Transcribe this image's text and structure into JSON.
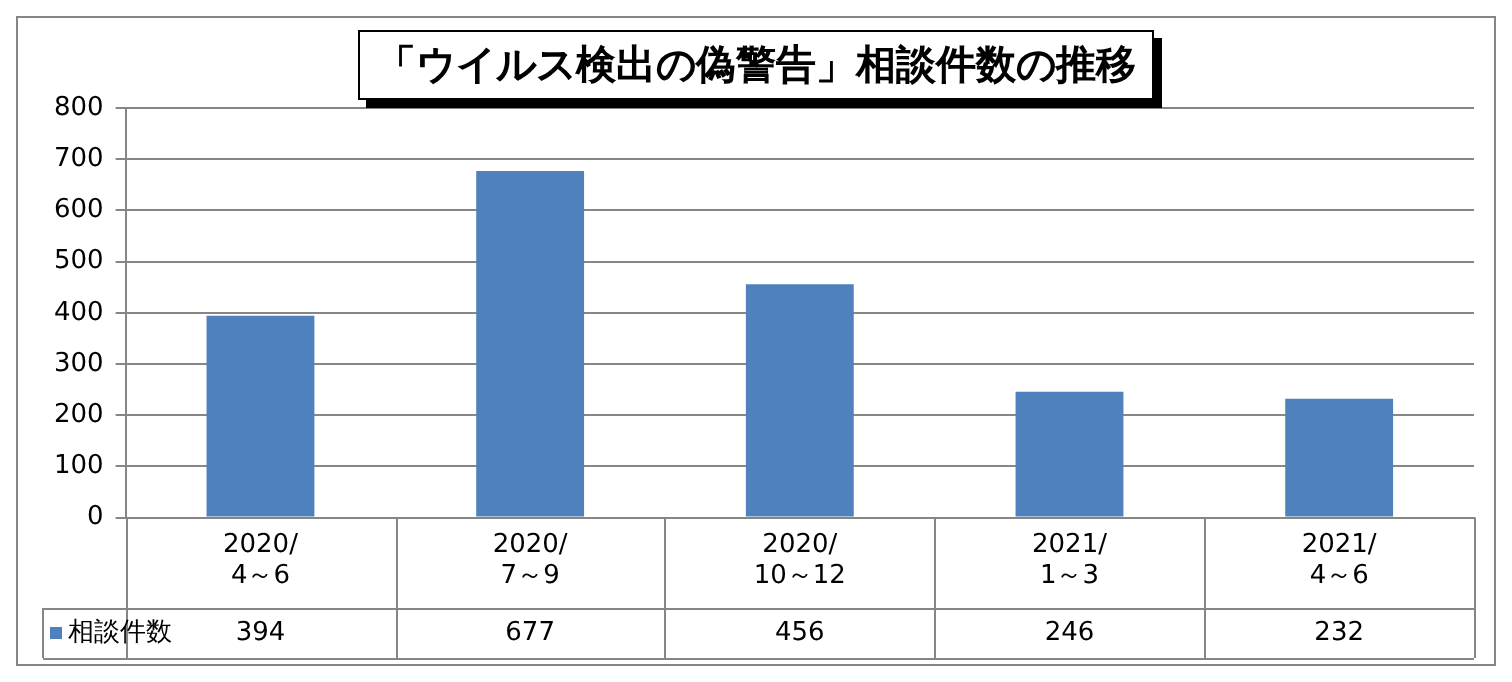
{
  "chart_data": {
    "type": "bar",
    "title": "「ウイルス検出の偽警告」相談件数の推移",
    "categories": [
      "2020/4～6",
      "2020/7～9",
      "2020/10～12",
      "2021/1～3",
      "2021/4～6"
    ],
    "series": [
      {
        "name": "相談件数",
        "color": "#4f81bd",
        "values": [
          394,
          677,
          456,
          246,
          232
        ]
      }
    ],
    "ylim": [
      0,
      800
    ],
    "yticks": [
      0,
      100,
      200,
      300,
      400,
      500,
      600,
      700,
      800
    ],
    "grid": "y",
    "legend": "bottom",
    "data_labels": true
  }
}
